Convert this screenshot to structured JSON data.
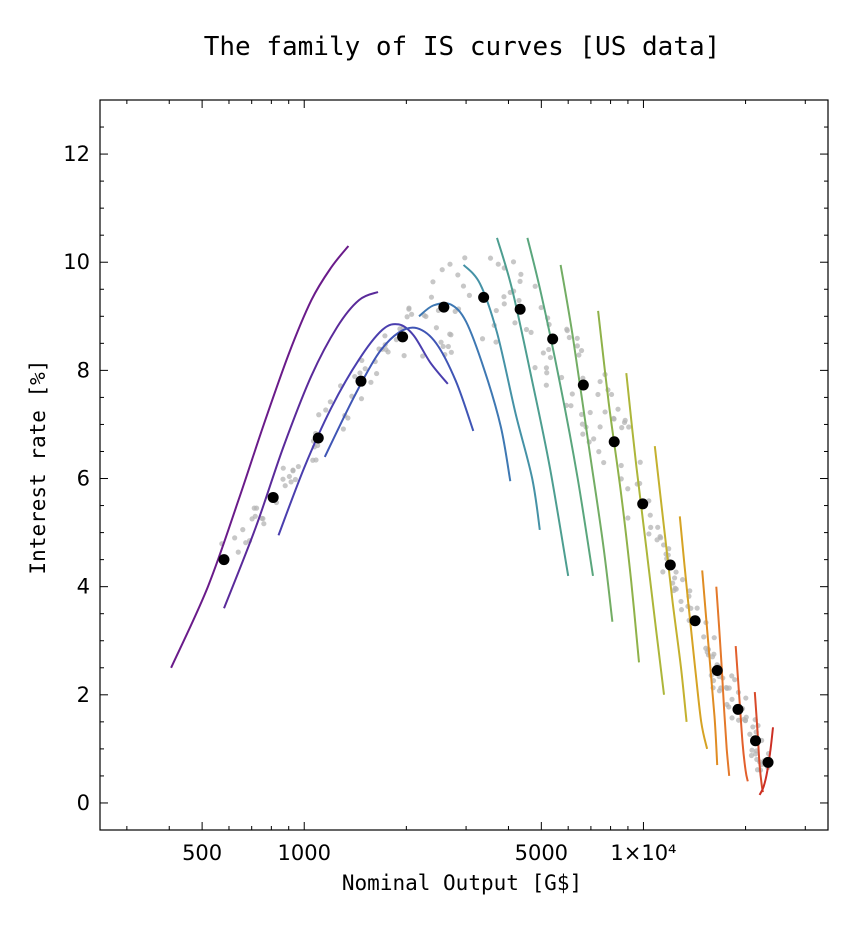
{
  "chart_data": {
    "type": "line",
    "title": "The family of IS curves [US data]",
    "xlabel": "Nominal Output [G$]",
    "ylabel": "Interest rate [%]",
    "x_scale": "log",
    "xlim": [
      250,
      35000
    ],
    "ylim": [
      -0.5,
      13
    ],
    "x_ticks": [
      {
        "value": 500,
        "label": "500"
      },
      {
        "value": 1000,
        "label": "1000"
      },
      {
        "value": 5000,
        "label": "5000"
      },
      {
        "value": 10000,
        "label": "1×10⁴"
      }
    ],
    "y_ticks": [
      0,
      2,
      4,
      6,
      8,
      10,
      12
    ],
    "observed_points": [
      {
        "x": 580,
        "y": 4.5
      },
      {
        "x": 810,
        "y": 5.65
      },
      {
        "x": 1100,
        "y": 6.75
      },
      {
        "x": 1470,
        "y": 7.8
      },
      {
        "x": 1950,
        "y": 8.62
      },
      {
        "x": 2580,
        "y": 9.17
      },
      {
        "x": 3380,
        "y": 9.35
      },
      {
        "x": 4330,
        "y": 9.13
      },
      {
        "x": 5400,
        "y": 8.58
      },
      {
        "x": 6650,
        "y": 7.73
      },
      {
        "x": 8200,
        "y": 6.68
      },
      {
        "x": 9950,
        "y": 5.53
      },
      {
        "x": 12000,
        "y": 4.4
      },
      {
        "x": 14200,
        "y": 3.37
      },
      {
        "x": 16500,
        "y": 2.45
      },
      {
        "x": 19000,
        "y": 1.73
      },
      {
        "x": 21400,
        "y": 1.15
      },
      {
        "x": 23300,
        "y": 0.75
      }
    ],
    "series": [
      {
        "color": "#6a1b8a",
        "points": [
          [
            405,
            2.5
          ],
          [
            520,
            4.0
          ],
          [
            640,
            5.6
          ],
          [
            760,
            7.0
          ],
          [
            900,
            8.3
          ],
          [
            1050,
            9.3
          ],
          [
            1200,
            9.9
          ],
          [
            1350,
            10.3
          ]
        ]
      },
      {
        "color": "#5a2a9a",
        "points": [
          [
            580,
            3.6
          ],
          [
            720,
            5.1
          ],
          [
            870,
            6.6
          ],
          [
            1050,
            7.9
          ],
          [
            1250,
            8.8
          ],
          [
            1450,
            9.3
          ],
          [
            1650,
            9.45
          ]
        ]
      },
      {
        "color": "#4a3eae",
        "points": [
          [
            840,
            4.95
          ],
          [
            1000,
            6.2
          ],
          [
            1200,
            7.3
          ],
          [
            1450,
            8.2
          ],
          [
            1700,
            8.75
          ],
          [
            1900,
            8.85
          ],
          [
            2100,
            8.65
          ],
          [
            2350,
            8.15
          ],
          [
            2650,
            7.75
          ]
        ]
      },
      {
        "color": "#3f55b5",
        "points": [
          [
            1150,
            6.4
          ],
          [
            1400,
            7.5
          ],
          [
            1650,
            8.3
          ],
          [
            1900,
            8.7
          ],
          [
            2150,
            8.78
          ],
          [
            2450,
            8.5
          ],
          [
            2800,
            7.8
          ],
          [
            3150,
            6.88
          ]
        ]
      },
      {
        "color": "#3e78b3",
        "points": [
          [
            2180,
            9.0
          ],
          [
            2400,
            9.2
          ],
          [
            2700,
            9.22
          ],
          [
            3000,
            8.9
          ],
          [
            3400,
            8.0
          ],
          [
            3800,
            6.95
          ],
          [
            4050,
            5.95
          ]
        ]
      },
      {
        "color": "#4592a6",
        "points": [
          [
            2950,
            9.95
          ],
          [
            3300,
            9.6
          ],
          [
            3700,
            8.7
          ],
          [
            4200,
            7.2
          ],
          [
            4700,
            6.0
          ],
          [
            4950,
            5.05
          ]
        ]
      },
      {
        "color": "#4d9e90",
        "points": [
          [
            3700,
            10.45
          ],
          [
            4100,
            9.5
          ],
          [
            4700,
            7.8
          ],
          [
            5300,
            6.2
          ],
          [
            6000,
            4.2
          ]
        ]
      },
      {
        "color": "#5aa67d",
        "points": [
          [
            4550,
            10.45
          ],
          [
            5000,
            9.4
          ],
          [
            5700,
            7.7
          ],
          [
            6400,
            6.0
          ],
          [
            7100,
            4.2
          ]
        ]
      },
      {
        "color": "#73ad64",
        "points": [
          [
            5700,
            9.95
          ],
          [
            6200,
            8.6
          ],
          [
            6900,
            6.6
          ],
          [
            7600,
            4.8
          ],
          [
            8100,
            3.35
          ]
        ]
      },
      {
        "color": "#8fb24a",
        "points": [
          [
            7350,
            9.1
          ],
          [
            7900,
            7.4
          ],
          [
            8600,
            5.7
          ],
          [
            9200,
            4.1
          ],
          [
            9700,
            2.6
          ]
        ]
      },
      {
        "color": "#adb63a",
        "points": [
          [
            8900,
            7.95
          ],
          [
            9500,
            6.3
          ],
          [
            10200,
            4.7
          ],
          [
            10900,
            3.2
          ],
          [
            11500,
            2.0
          ]
        ]
      },
      {
        "color": "#c4b12e",
        "points": [
          [
            10800,
            6.6
          ],
          [
            11500,
            5.1
          ],
          [
            12200,
            3.7
          ],
          [
            12900,
            2.5
          ],
          [
            13400,
            1.5
          ]
        ]
      },
      {
        "color": "#d6a324",
        "points": [
          [
            12800,
            5.3
          ],
          [
            13500,
            3.8
          ],
          [
            14200,
            2.5
          ],
          [
            14800,
            1.5
          ],
          [
            15400,
            1.0
          ]
        ]
      },
      {
        "color": "#e08c22",
        "points": [
          [
            14900,
            4.3
          ],
          [
            15600,
            2.8
          ],
          [
            16200,
            1.6
          ],
          [
            16500,
            0.7
          ]
        ]
      },
      {
        "color": "#e4782a",
        "points": [
          [
            16400,
            4.0
          ],
          [
            16900,
            2.8
          ],
          [
            17300,
            1.7
          ],
          [
            17600,
            1.0
          ],
          [
            17900,
            0.5
          ]
        ]
      },
      {
        "color": "#e25f2c",
        "points": [
          [
            18700,
            2.9
          ],
          [
            19200,
            1.9
          ],
          [
            19600,
            1.1
          ],
          [
            20000,
            0.6
          ],
          [
            20300,
            0.4
          ]
        ]
      },
      {
        "color": "#d84a2a",
        "points": [
          [
            21300,
            2.05
          ],
          [
            21700,
            1.3
          ],
          [
            22000,
            0.7
          ],
          [
            22300,
            0.35
          ],
          [
            22500,
            0.2
          ]
        ]
      },
      {
        "color": "#cc2f24",
        "points": [
          [
            22000,
            0.15
          ],
          [
            22600,
            0.3
          ],
          [
            23200,
            0.6
          ],
          [
            23700,
            1.0
          ],
          [
            24100,
            1.4
          ]
        ]
      }
    ],
    "scatter_color": "#b4b4b4",
    "point_color": "#000000",
    "legend": "none",
    "grid": false
  }
}
